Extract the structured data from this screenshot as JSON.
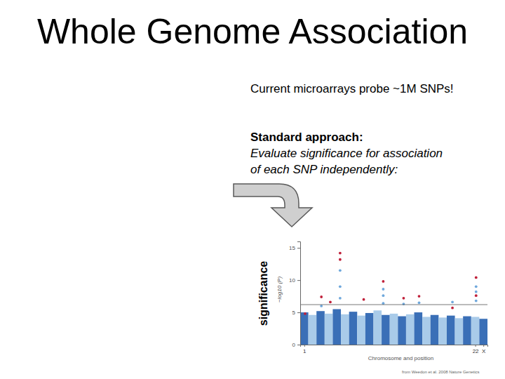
{
  "title": "Whole Genome Association",
  "text": {
    "intro": "Current microarrays probe ~1M SNPs!",
    "heading": "Standard approach:",
    "body": [
      "Evaluate significance for association",
      "of each SNP independently:"
    ]
  },
  "side_label": "significance",
  "source": "from Weedon et al. 2008 Nature Genetics",
  "chart_data": {
    "type": "scatter",
    "xlabel": "Chromosome and position",
    "ylabel": "−log10 (P)",
    "xlim": [
      0,
      23
    ],
    "ylim": [
      0,
      16
    ],
    "xticks": [
      {
        "value": 0.5,
        "label": "1"
      },
      {
        "value": 21.5,
        "label": "22"
      },
      {
        "value": 22.5,
        "label": "X"
      }
    ],
    "yticks": [
      0,
      5,
      10,
      15
    ],
    "threshold": 6.2,
    "series": [
      {
        "type": "bar",
        "x": [
          0.5,
          1.5,
          2.5,
          3.5,
          4.5,
          5.5,
          6.5,
          7.5,
          8.5,
          9.5,
          10.5,
          11.5,
          12.5,
          13.5,
          14.5,
          15.5,
          16.5,
          17.5,
          18.5,
          19.5,
          20.5,
          21.5,
          22.5
        ],
        "values": [
          5.0,
          4.6,
          5.2,
          4.8,
          5.5,
          4.7,
          5.1,
          4.5,
          4.9,
          5.3,
          4.6,
          4.8,
          4.4,
          4.7,
          5.0,
          4.3,
          4.6,
          4.2,
          4.5,
          4.1,
          4.4,
          4.3,
          4.0
        ],
        "colors": [
          "#3a6fb7",
          "#a9cbe9",
          "#3a6fb7",
          "#a9cbe9",
          "#3a6fb7",
          "#a9cbe9",
          "#3a6fb7",
          "#a9cbe9",
          "#3a6fb7",
          "#a9cbe9",
          "#3a6fb7",
          "#a9cbe9",
          "#3a6fb7",
          "#a9cbe9",
          "#3a6fb7",
          "#a9cbe9",
          "#3a6fb7",
          "#a9cbe9",
          "#3a6fb7",
          "#a9cbe9",
          "#3a6fb7",
          "#a9cbe9",
          "#3a6fb7"
        ]
      },
      {
        "type": "scatter",
        "color": "#6fa8dc",
        "x": [
          4.9,
          4.9,
          4.9,
          10.2,
          10.2,
          10.2,
          21.6,
          21.6,
          21.6,
          14.6,
          2.6,
          18.7,
          12.7
        ],
        "values": [
          11.5,
          9.0,
          7.2,
          8.6,
          7.6,
          6.4,
          9.0,
          8.2,
          6.8,
          6.5,
          6.0,
          6.6,
          6.3
        ]
      },
      {
        "type": "scatter",
        "color": "#c0203a",
        "x": [
          0.6,
          2.6,
          3.7,
          4.9,
          4.9,
          7.8,
          10.2,
          12.7,
          14.6,
          18.7,
          21.6,
          21.6
        ],
        "values": [
          4.8,
          7.4,
          6.6,
          14.2,
          13.2,
          7.0,
          9.8,
          7.2,
          7.5,
          5.7,
          10.4,
          7.6
        ]
      }
    ]
  }
}
